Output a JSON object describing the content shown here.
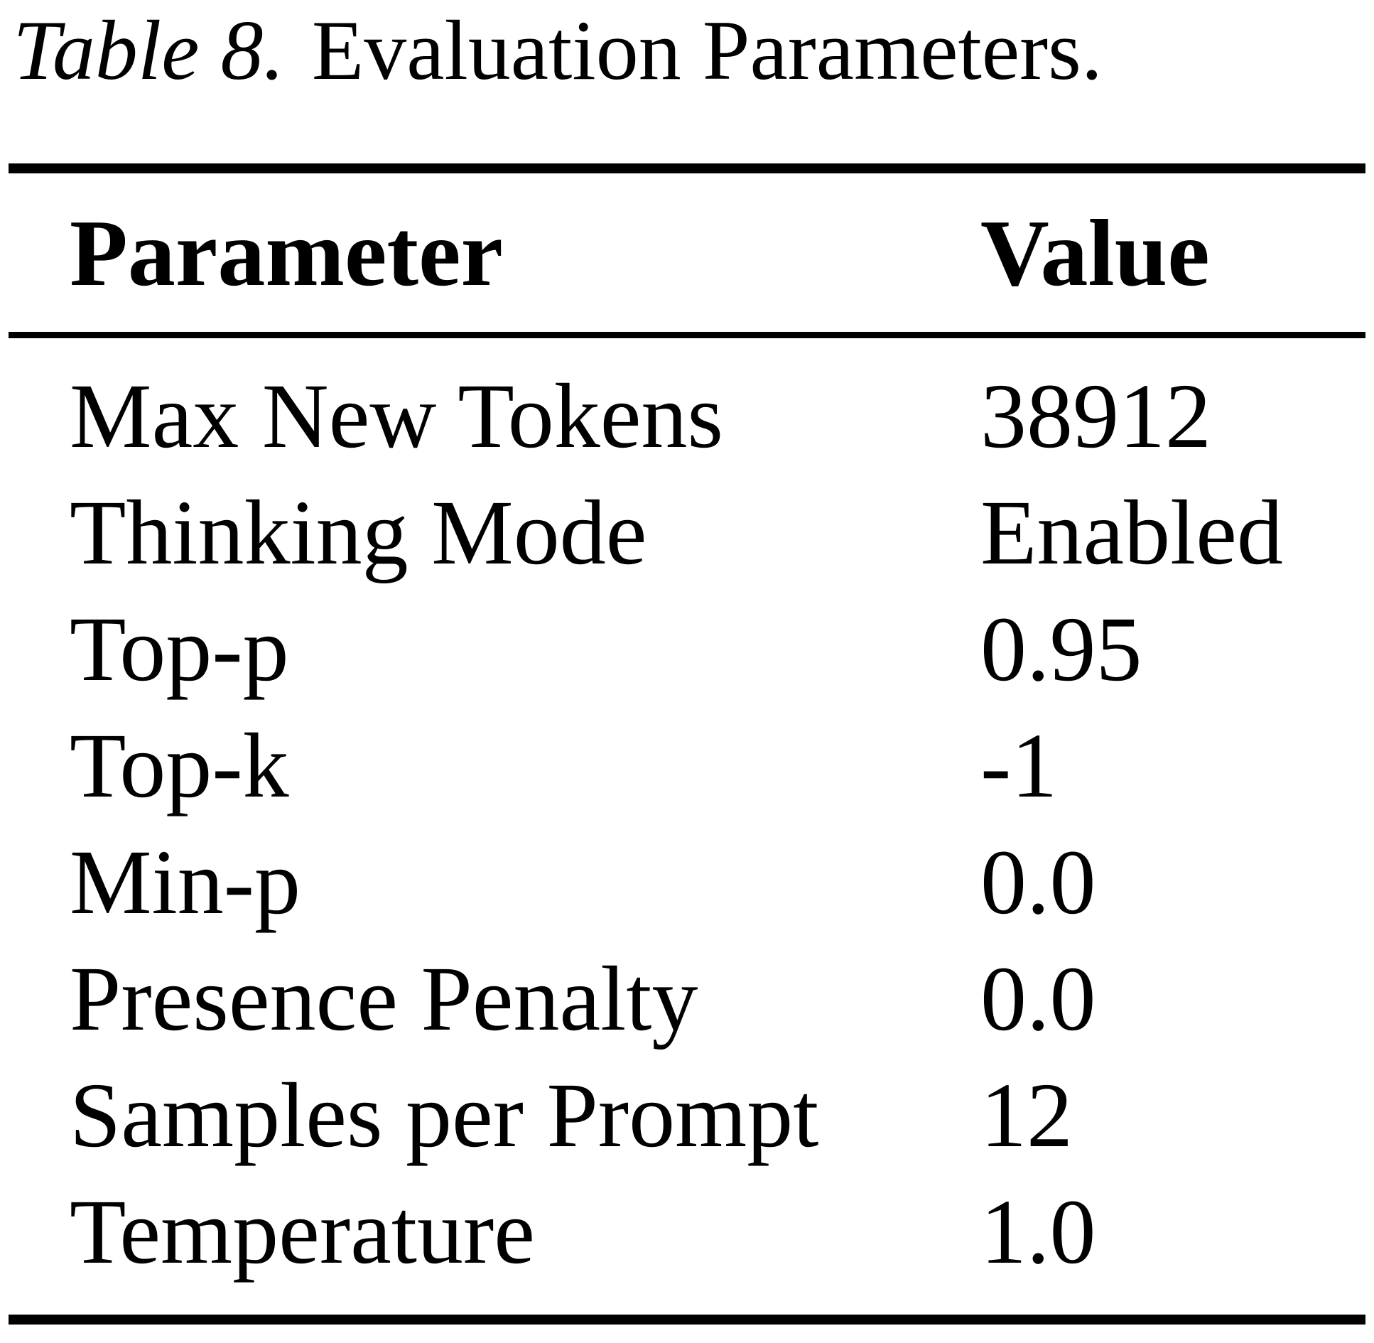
{
  "caption": {
    "label": "Table 8.",
    "text": "Evaluation Parameters."
  },
  "table": {
    "columns": [
      "Parameter",
      "Value"
    ],
    "rows": [
      {
        "parameter": "Max New Tokens",
        "value": "38912"
      },
      {
        "parameter": "Thinking Mode",
        "value": "Enabled"
      },
      {
        "parameter": "Top-p",
        "value": "0.95"
      },
      {
        "parameter": "Top-k",
        "value": "-1"
      },
      {
        "parameter": "Min-p",
        "value": "0.0"
      },
      {
        "parameter": "Presence Penalty",
        "value": "0.0"
      },
      {
        "parameter": "Samples per Prompt",
        "value": "12"
      },
      {
        "parameter": "Temperature",
        "value": "1.0"
      }
    ]
  },
  "colors": {
    "text": "#000000",
    "background": "#ffffff",
    "rule": "#000000"
  }
}
